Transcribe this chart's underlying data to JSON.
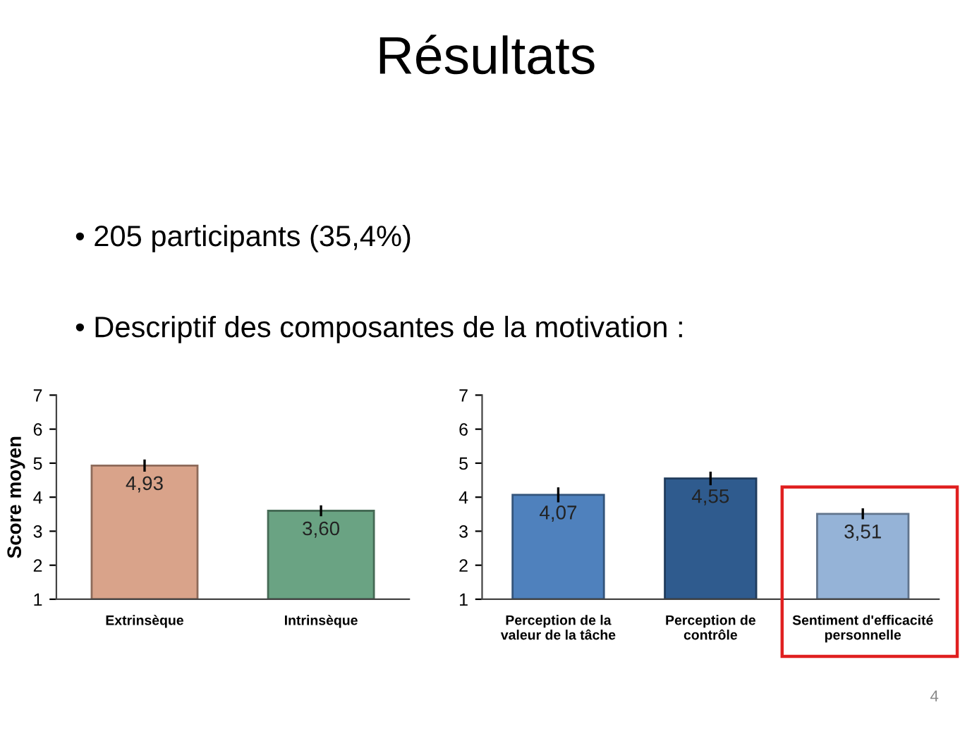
{
  "chart_data": [
    {
      "type": "other",
      "title": "Résultats",
      "annotations": [
        "• 205 participants (35,4%)",
        "• Descriptif des composantes de la motivation :"
      ]
    },
    {
      "type": "bar",
      "ylabel": "Score moyen",
      "categories": [
        "Extrinsèque",
        "Intrinsèque"
      ],
      "values": [
        4.93,
        3.6
      ],
      "colors": [
        "#d9a38a",
        "#6aa383"
      ],
      "errors": [
        0.18,
        0.16
      ],
      "value_labels": [
        "4,93",
        "3,60"
      ],
      "ylim": [
        1,
        7
      ],
      "yticks": [
        1,
        2,
        3,
        4,
        5,
        6,
        7
      ],
      "grid": false
    },
    {
      "type": "bar",
      "annotations": [
        "4"
      ],
      "categories": [
        "Perception de la\nvaleur de la tâche",
        "Perception de\ncontrôle",
        "Sentiment d'efficacité\npersonnelle"
      ],
      "values": [
        4.07,
        4.55,
        3.51
      ],
      "colors": [
        "#4f81bd",
        "#2f5b8e",
        "#95b3d7"
      ],
      "errors": [
        0.22,
        0.2,
        0.16
      ],
      "value_labels": [
        "4,07",
        "4,55",
        "3,51"
      ],
      "ylim": [
        1,
        7
      ],
      "yticks": [
        1,
        2,
        3,
        4,
        5,
        6,
        7
      ],
      "grid": false
    }
  ]
}
